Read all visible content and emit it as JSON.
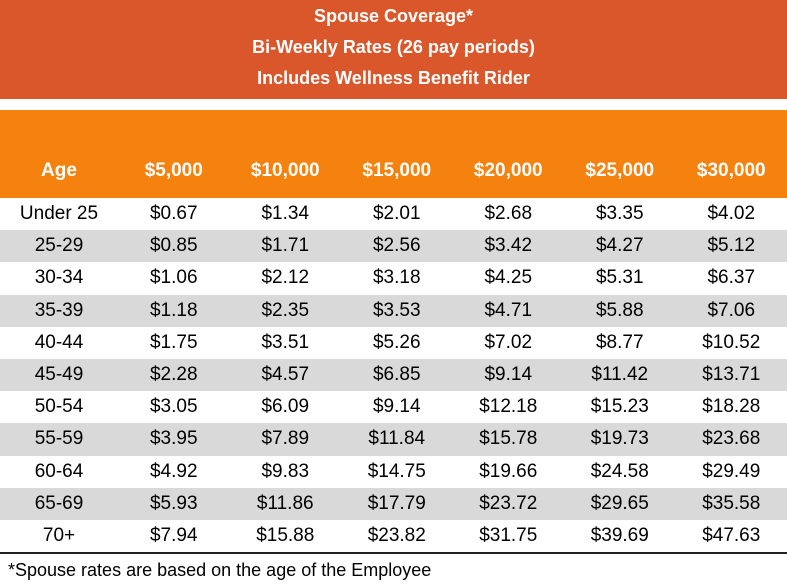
{
  "header": {
    "title": "Spouse Coverage*",
    "subtitle": "Bi-Weekly Rates (26 pay periods)",
    "note": "Includes Wellness Benefit Rider"
  },
  "table": {
    "columns": [
      "Age",
      "$5,000",
      "$10,000",
      "$15,000",
      "$20,000",
      "$25,000",
      "$30,000"
    ],
    "rows": [
      [
        "Under 25",
        "$0.67",
        "$1.34",
        "$2.01",
        "$2.68",
        "$3.35",
        "$4.02"
      ],
      [
        "25-29",
        "$0.85",
        "$1.71",
        "$2.56",
        "$3.42",
        "$4.27",
        "$5.12"
      ],
      [
        "30-34",
        "$1.06",
        "$2.12",
        "$3.18",
        "$4.25",
        "$5.31",
        "$6.37"
      ],
      [
        "35-39",
        "$1.18",
        "$2.35",
        "$3.53",
        "$4.71",
        "$5.88",
        "$7.06"
      ],
      [
        "40-44",
        "$1.75",
        "$3.51",
        "$5.26",
        "$7.02",
        "$8.77",
        "$10.52"
      ],
      [
        "45-49",
        "$2.28",
        "$4.57",
        "$6.85",
        "$9.14",
        "$11.42",
        "$13.71"
      ],
      [
        "50-54",
        "$3.05",
        "$6.09",
        "$9.14",
        "$12.18",
        "$15.23",
        "$18.28"
      ],
      [
        "55-59",
        "$3.95",
        "$7.89",
        "$11.84",
        "$15.78",
        "$19.73",
        "$23.68"
      ],
      [
        "60-64",
        "$4.92",
        "$9.83",
        "$14.75",
        "$19.66",
        "$24.58",
        "$29.49"
      ],
      [
        "65-69",
        "$5.93",
        "$11.86",
        "$17.79",
        "$23.72",
        "$29.65",
        "$35.58"
      ],
      [
        "70+",
        "$7.94",
        "$15.88",
        "$23.82",
        "$31.75",
        "$39.69",
        "$47.63"
      ]
    ]
  },
  "footnote": "*Spouse rates are based on the age of the Employee"
}
